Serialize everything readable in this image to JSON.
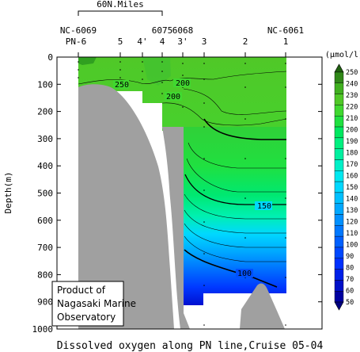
{
  "chart_data": {
    "type": "heatmap",
    "title": "Dissolved oxygen along PN line,Cruise 05-04",
    "ylabel": "Depth(m)",
    "unit": "(μmol/l)",
    "ylim": [
      0,
      1000
    ],
    "yticks": [
      0,
      100,
      200,
      300,
      400,
      500,
      600,
      700,
      800,
      900,
      1000
    ],
    "scale_bar_label": "60N.Miles",
    "stations": [
      {
        "pn": "6",
        "nc": "NC-6069"
      },
      {
        "pn": "5",
        "nc": ""
      },
      {
        "pn": "4'",
        "nc": ""
      },
      {
        "pn": "4",
        "nc": "6075"
      },
      {
        "pn": "3'",
        "nc": "6068"
      },
      {
        "pn": "3",
        "nc": ""
      },
      {
        "pn": "2",
        "nc": ""
      },
      {
        "pn": "1",
        "nc": "NC-6061"
      }
    ],
    "station_prefix": "PN-",
    "colorbar_levels": [
      50,
      60,
      70,
      80,
      90,
      100,
      110,
      120,
      130,
      140,
      150,
      160,
      170,
      180,
      190,
      200,
      210,
      220,
      230,
      240,
      250
    ],
    "colorbar_colors": [
      "#0000a0",
      "#0010c8",
      "#0020e8",
      "#0030ff",
      "#0048ff",
      "#0060ff",
      "#0078ff",
      "#0090ff",
      "#00a8ff",
      "#00c0ff",
      "#00d8ff",
      "#00e8f0",
      "#00f0c8",
      "#00f0a0",
      "#00f080",
      "#00e860",
      "#20e040",
      "#40d830",
      "#50c828",
      "#40b020",
      "#308818"
    ],
    "contour_labels": [
      "250",
      "200",
      "200",
      "150",
      "100"
    ],
    "credit": [
      "Product of",
      "Nagasaki Marine",
      "Observatory"
    ]
  }
}
